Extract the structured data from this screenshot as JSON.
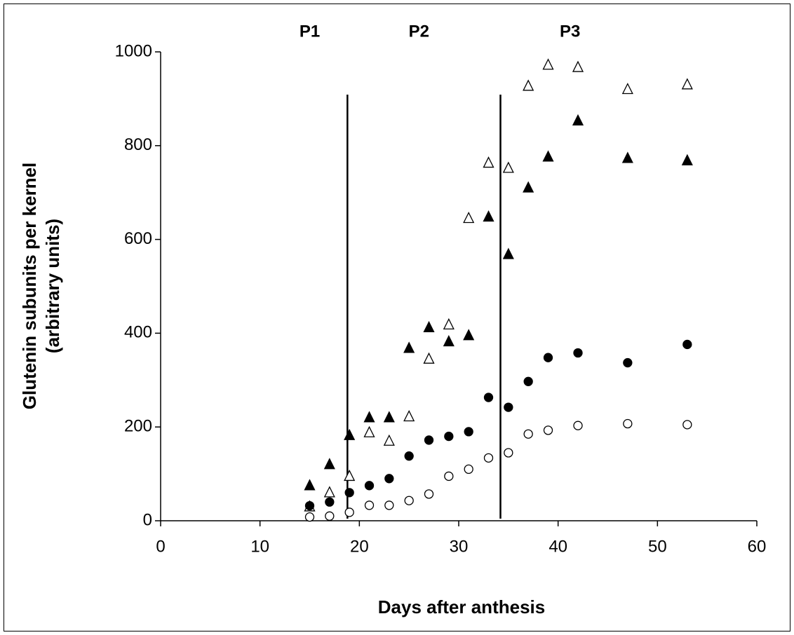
{
  "chart_data": {
    "type": "scatter",
    "xlabel": "Days after anthesis",
    "ylabel": [
      "Glutenin subunits per kernel",
      "(arbitrary units)"
    ],
    "x": [
      15,
      17,
      19,
      21,
      23,
      25,
      27,
      29,
      31,
      33,
      35,
      37,
      39,
      42,
      47,
      53
    ],
    "series": [
      {
        "marker": "triangle",
        "color": "#ffffff",
        "values": [
          30,
          60,
          95,
          188,
          170,
          222,
          345,
          418,
          645,
          763,
          752,
          927,
          972,
          967,
          920,
          930
        ]
      },
      {
        "marker": "triangle",
        "color": "#000000",
        "values": [
          75,
          120,
          182,
          220,
          220,
          368,
          412,
          382,
          395,
          648,
          568,
          710,
          776,
          853,
          773,
          768
        ]
      },
      {
        "marker": "circle",
        "color": "#000000",
        "values": [
          32,
          40,
          60,
          75,
          90,
          138,
          172,
          180,
          190,
          263,
          242,
          297,
          348,
          358,
          337,
          376
        ]
      },
      {
        "marker": "circle",
        "color": "#ffffff",
        "values": [
          8,
          10,
          18,
          33,
          33,
          43,
          57,
          95,
          110,
          134,
          145,
          185,
          193,
          203,
          207,
          205
        ]
      }
    ],
    "vlines": [
      18.8,
      34.2
    ],
    "annotations": [
      {
        "text": "P1",
        "x": 15
      },
      {
        "text": "P2",
        "x": 26
      },
      {
        "text": "P3",
        "x": 41.2
      }
    ],
    "xlim": [
      0,
      60
    ],
    "xticks": [
      0,
      10,
      20,
      30,
      40,
      50,
      60
    ],
    "ylim": [
      0,
      1000
    ],
    "yticks": [
      0,
      200,
      400,
      600,
      800,
      1000
    ],
    "grid": false
  }
}
